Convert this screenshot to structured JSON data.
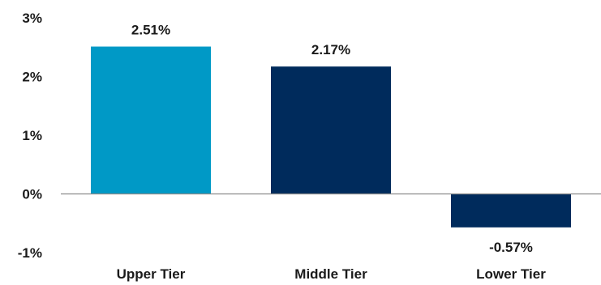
{
  "chart_data": {
    "type": "bar",
    "categories": [
      "Upper Tier",
      "Middle Tier",
      "Lower Tier"
    ],
    "values": [
      2.51,
      2.17,
      -0.57
    ],
    "data_labels": [
      "2.51%",
      "2.17%",
      "-0.57%"
    ],
    "ylim": [
      -1,
      3
    ],
    "yticks": [
      3,
      2,
      1,
      0,
      -1
    ],
    "ytick_labels": [
      "3%",
      "2%",
      "1%",
      "0%",
      "-1%"
    ],
    "bar_colors": [
      "#0099C6",
      "#002B5C",
      "#002B5C"
    ],
    "grid": false,
    "legend": "none"
  }
}
